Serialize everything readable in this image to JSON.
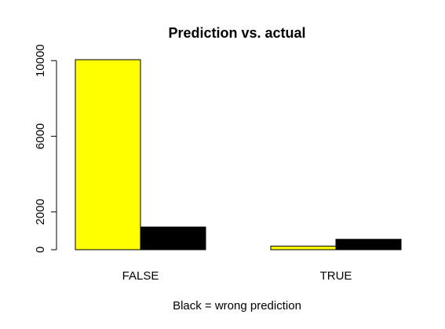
{
  "chart_data": {
    "type": "bar",
    "title": "Prediction vs. actual",
    "xlabel": "Black = wrong prediction",
    "ylabel": "",
    "categories": [
      "FALSE",
      "TRUE"
    ],
    "series": [
      {
        "values": [
          10050,
          190
        ],
        "color": "#ffff00"
      },
      {
        "values": [
          1200,
          550
        ],
        "color": "#000000"
      }
    ],
    "ylim": [
      0,
      10300
    ],
    "yticks": [
      0,
      2000,
      6000,
      10000
    ],
    "grid": false,
    "legend": "none"
  }
}
